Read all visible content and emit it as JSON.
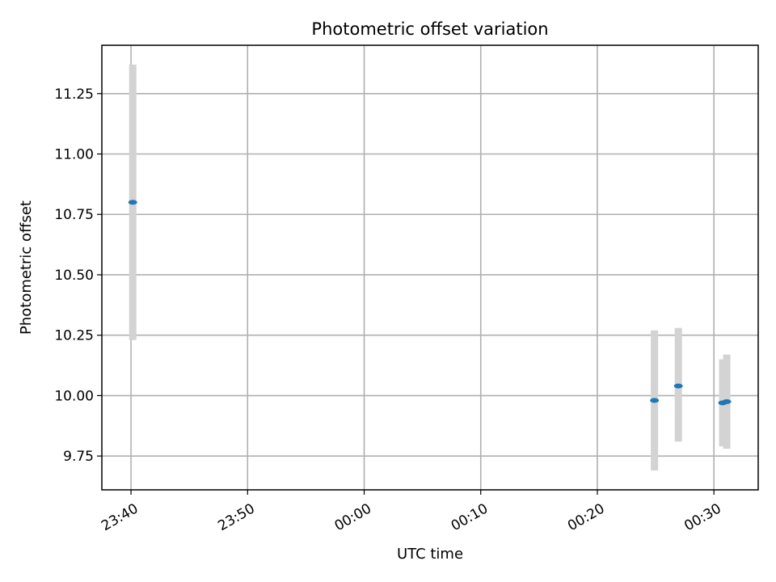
{
  "chart_data": {
    "type": "scatter",
    "title": "Photometric offset variation",
    "xlabel": "UTC time",
    "ylabel": "Photometric offset",
    "x_unit": "minutes",
    "x_tick_values": [
      -20,
      -10,
      0,
      10,
      20,
      30
    ],
    "x_tick_labels": [
      "23:40",
      "23:50",
      "00:00",
      "00:10",
      "00:20",
      "00:30"
    ],
    "xlim": [
      -22.5,
      33.8
    ],
    "y_ticks": [
      9.75,
      10.0,
      10.25,
      10.5,
      10.75,
      11.0,
      11.25
    ],
    "y_tick_labels": [
      "9.75",
      "10.00",
      "10.25",
      "10.50",
      "10.75",
      "11.00",
      "11.25"
    ],
    "ylim": [
      9.61,
      11.45
    ],
    "grid": true,
    "error_bar_color": "#d3d3d3",
    "marker_color": "#1f77b4",
    "points": [
      {
        "x": -19.85,
        "y": 10.8,
        "ylow": 10.23,
        "yhigh": 11.37
      },
      {
        "x": 24.9,
        "y": 9.98,
        "ylow": 9.69,
        "yhigh": 10.27
      },
      {
        "x": 26.95,
        "y": 10.04,
        "ylow": 9.81,
        "yhigh": 10.28
      },
      {
        "x": 30.75,
        "y": 9.97,
        "ylow": 9.79,
        "yhigh": 10.15
      },
      {
        "x": 31.1,
        "y": 9.975,
        "ylow": 9.78,
        "yhigh": 10.17
      }
    ]
  }
}
